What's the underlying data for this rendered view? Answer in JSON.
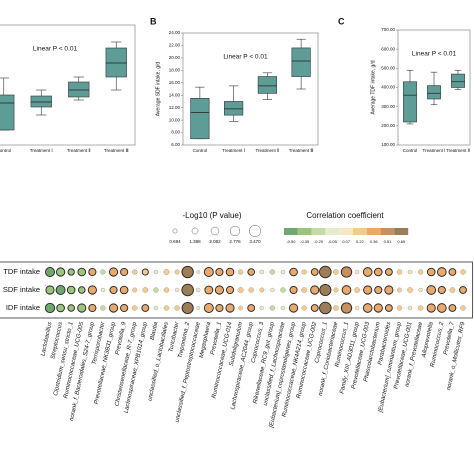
{
  "chart_data": [
    {
      "type": "box",
      "panel": null,
      "annotation": "Linear P < 0.01",
      "categories": [
        "Control",
        "Treatment Ⅰ",
        "Treatment Ⅱ",
        "Treatment Ⅲ"
      ],
      "ylim": [
        0,
        600
      ],
      "color": "#5e9c98",
      "boxes": [
        {
          "min": 75,
          "q1": 75,
          "median": 210,
          "q3": 250,
          "max": 335
        },
        {
          "min": 150,
          "q1": 190,
          "median": 215,
          "q3": 245,
          "max": 275
        },
        {
          "min": 225,
          "q1": 240,
          "median": 275,
          "q3": 315,
          "max": 340
        },
        {
          "min": 275,
          "q1": 340,
          "median": 410,
          "q3": 485,
          "max": 515
        }
      ]
    },
    {
      "type": "box",
      "panel": "B",
      "annotation": "Linear P < 0.01",
      "ylabel": "Average SDF intake, g/d",
      "categories": [
        "Control",
        "Treatment Ⅰ",
        "Treatment Ⅱ",
        "Treatment Ⅲ"
      ],
      "ylim": [
        6,
        24
      ],
      "color": "#5e9c98",
      "yticks": [
        {
          "value": 6,
          "label": "6.00"
        },
        {
          "value": 8,
          "label": "8.00"
        },
        {
          "value": 10,
          "label": "10.00"
        },
        {
          "value": 12,
          "label": "12.00"
        },
        {
          "value": 14,
          "label": "14.00"
        },
        {
          "value": 16,
          "label": "16.00"
        },
        {
          "value": 18,
          "label": "18.00"
        },
        {
          "value": 20,
          "label": "20.00"
        },
        {
          "value": 22,
          "label": "22.00"
        },
        {
          "value": 24,
          "label": "24.00"
        }
      ],
      "boxes": [
        {
          "min": 7,
          "q1": 7,
          "median": 11.2,
          "q3": 13.5,
          "max": 15.3
        },
        {
          "min": 9.8,
          "q1": 10.8,
          "median": 11.8,
          "q3": 13,
          "max": 15.5
        },
        {
          "min": 13.3,
          "q1": 14.3,
          "median": 15.5,
          "q3": 17,
          "max": 17.6
        },
        {
          "min": 15,
          "q1": 17,
          "median": 19.5,
          "q3": 21.6,
          "max": 23
        }
      ]
    },
    {
      "type": "box",
      "panel": "C",
      "annotation": "Linear P < 0.01",
      "ylabel": "Average TDF intake, g/d",
      "categories": [
        "Control",
        "Treatment Ⅰ",
        "Treatment Ⅱ"
      ],
      "ylim": [
        100,
        700
      ],
      "color": "#5e9c98",
      "yticks": [
        {
          "value": 100,
          "label": "100.00"
        },
        {
          "value": 200,
          "label": "200.00"
        },
        {
          "value": 300,
          "label": "300.00"
        },
        {
          "value": 400,
          "label": "400.00"
        },
        {
          "value": 500,
          "label": "500.00"
        },
        {
          "value": 600,
          "label": "600.00"
        },
        {
          "value": 700,
          "label": "700.00"
        }
      ],
      "boxes": [
        {
          "min": 210,
          "q1": 220,
          "median": 360,
          "q3": 430,
          "max": 490
        },
        {
          "min": 310,
          "q1": 340,
          "median": 370,
          "q3": 410,
          "max": 480
        },
        {
          "min": 390,
          "q1": 400,
          "median": 430,
          "q3": 470,
          "max": 490
        }
      ]
    },
    {
      "type": "bubble",
      "size_title": "-Log10 (P value)",
      "color_title": "Correlation coefficient",
      "size_ticks": [
        0.694,
        1.388,
        2.082,
        2.776,
        3.47
      ],
      "size_tick_labels": [
        "0.694",
        "1.388",
        "2.082",
        "2.776",
        "3.470"
      ],
      "colorbar": {
        "ticks": [
          -0.5,
          -0.35,
          -0.2,
          -0.05,
          0.07,
          0.22,
          0.36,
          0.51,
          0.65
        ],
        "labels": [
          "-0.50",
          "-0.35",
          "-0.20",
          "-0.05",
          "0.07",
          "0.22",
          "0.36",
          "0.51",
          "0.65"
        ],
        "colors": [
          "#6fa86e",
          "#9cc47f",
          "#c5dba4",
          "#e4edcb",
          "#f6e8c4",
          "#f4cb8e",
          "#e9a96c",
          "#c98f5f",
          "#9d7c58"
        ]
      },
      "categories": [
        "Lactobacillus",
        "Streptococcus",
        "Clostridium_sensu_stricto_1",
        "Ruminococcaceae_UCG-005",
        "norank_f_Bacteroidales_S24-7_group",
        "Terrisporobacter",
        "Prevotellaceae_NK3B31_group",
        "Prevotella_9",
        "Christensenellaceae_R-7_group",
        "Lachnospiraceae_XPB1014_group",
        "Blautia",
        "unclassified_o_Lactobacillales",
        "Turicibacter",
        "Treponema_2",
        "unclassified_f_Peptostreptococcaceae",
        "Megasphaera",
        "Prevotella_1",
        "Ruminococcaceae_UCG-014",
        "Subdoligranulum",
        "Lachnospiraceae_AC2044_group",
        "Coprococcus_3",
        "Rikenellaceae_RC9_gut_group",
        "unclassified_f_Lachnospiraceae",
        "[Eubacterium]_coprostanoligenes_group",
        "Ruminococcaceae_NK4A214_group",
        "Ruminococcaceae_UCG-002",
        "Coprococcus_1",
        "norank_f_Coriobacteriaceae",
        "Ruminococcus_1",
        "Family_XIII_AD3011_group",
        "Prevotellaceae_UCG-003",
        "Phascolarctobacterium",
        "Parabacteroides",
        "[Eubacterium]_ruminantium_group",
        "Prevotellaceae_UCG-001",
        "norank_f_Prevotellaceae",
        "Alloprevotella",
        "Ruminococcus_2",
        "Prevotella_7",
        "norank_o_Mollicutes_RF9"
      ],
      "series": [
        {
          "name": "TDF intake",
          "values": [
            -0.45,
            -0.4,
            -0.3,
            -0.35,
            0.3,
            -0.2,
            0.36,
            0.3,
            0.2,
            0.25,
            -0.1,
            0.22,
            0.15,
            0.6,
            0.05,
            0.4,
            0.3,
            0.35,
            0.2,
            0.3,
            0.1,
            -0.2,
            -0.1,
            0.35,
            0.15,
            0.3,
            0.65,
            0.2,
            0.5,
            0.1,
            0.4,
            0.35,
            0.3,
            0.2,
            0.1,
            0.2,
            0.35,
            0.4,
            0.3,
            0.2
          ],
          "sizes": [
            2.5,
            2.2,
            1.5,
            2.0,
            1.8,
            1.0,
            2.2,
            1.8,
            1.0,
            1.4,
            0.6,
            1.2,
            0.8,
            3.4,
            0.4,
            2.5,
            1.8,
            2.0,
            1.0,
            1.6,
            0.6,
            1.0,
            0.6,
            2.0,
            0.9,
            1.7,
            3.47,
            1.1,
            3.0,
            0.6,
            2.4,
            2.0,
            1.7,
            1.0,
            0.6,
            1.0,
            2.0,
            2.4,
            1.7,
            1.0
          ]
        },
        {
          "name": "SDF intake",
          "values": [
            -0.4,
            -0.45,
            -0.35,
            -0.3,
            0.36,
            -0.1,
            0.3,
            0.35,
            0.15,
            0.2,
            -0.2,
            0.2,
            0.1,
            0.65,
            0.1,
            0.35,
            0.36,
            0.3,
            0.22,
            0.2,
            0.15,
            -0.1,
            -0.2,
            0.3,
            0.2,
            0.36,
            0.6,
            0.15,
            0.4,
            0.2,
            0.36,
            0.3,
            0.36,
            0.15,
            0.2,
            0.1,
            0.4,
            0.3,
            0.2,
            0.3
          ],
          "sizes": [
            2.2,
            2.5,
            2.0,
            1.6,
            2.2,
            0.6,
            1.8,
            2.0,
            0.8,
            1.1,
            1.0,
            1.0,
            0.6,
            3.47,
            0.6,
            2.1,
            2.2,
            1.8,
            1.2,
            1.0,
            0.8,
            0.6,
            1.0,
            1.8,
            1.1,
            2.2,
            3.3,
            0.8,
            2.4,
            1.1,
            2.2,
            1.8,
            2.2,
            0.8,
            1.1,
            0.6,
            2.4,
            1.8,
            1.1,
            1.7
          ]
        },
        {
          "name": "IDF intake",
          "values": [
            -0.45,
            -0.35,
            -0.3,
            -0.4,
            0.3,
            -0.2,
            0.36,
            0.3,
            0.2,
            0.3,
            -0.1,
            0.2,
            0.2,
            0.6,
            0.05,
            0.4,
            0.3,
            0.36,
            0.15,
            0.3,
            0.1,
            -0.2,
            -0.1,
            0.36,
            0.15,
            0.3,
            0.65,
            0.2,
            0.5,
            0.1,
            0.4,
            0.36,
            0.3,
            0.2,
            0.1,
            0.2,
            0.36,
            0.4,
            0.3,
            0.2
          ],
          "sizes": [
            2.6,
            2.0,
            1.6,
            2.2,
            1.8,
            1.0,
            2.2,
            1.8,
            1.0,
            1.7,
            0.6,
            1.0,
            1.0,
            3.3,
            0.4,
            2.5,
            1.8,
            2.2,
            0.8,
            1.7,
            0.6,
            1.0,
            0.6,
            2.2,
            0.9,
            1.7,
            3.47,
            1.1,
            3.0,
            0.6,
            2.4,
            2.2,
            1.7,
            1.0,
            0.6,
            1.0,
            2.2,
            2.4,
            1.7,
            1.0
          ]
        }
      ]
    }
  ]
}
